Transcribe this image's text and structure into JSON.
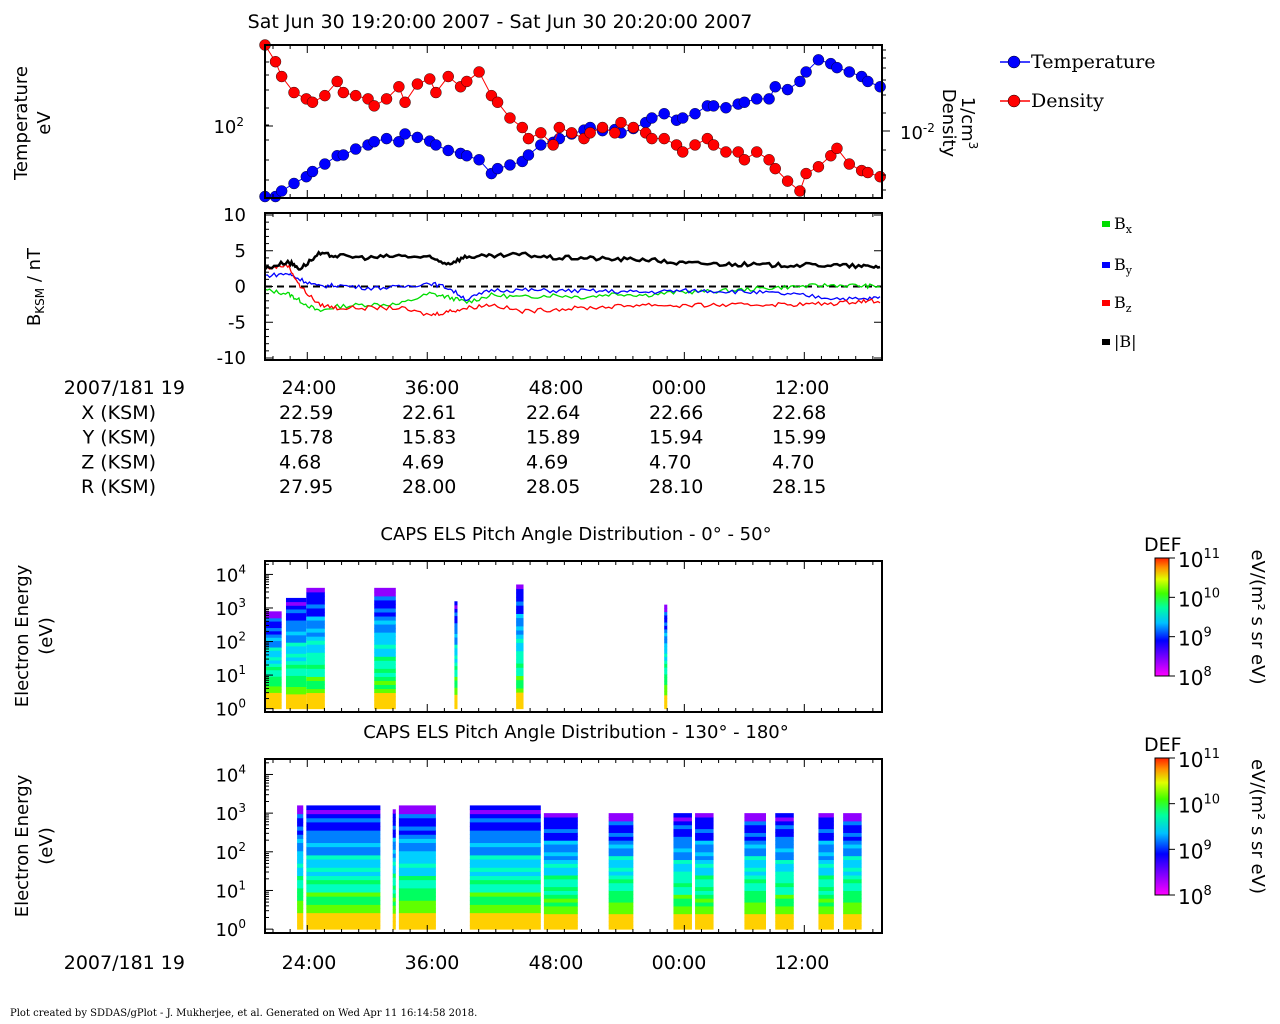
{
  "title": "Sat Jun 30 19:20:00 2007 - Sat Jun 30 20:20:00 2007",
  "footer": "Plot created by SDDAS/gPlot - J. Mukherjee, et al.  Generated on Wed Apr 11 16:14:58 2018.",
  "colors": {
    "temperature": "#0000ff",
    "density": "#ff0000",
    "bx": "#00dd00",
    "by": "#0000ff",
    "bz": "#ff0000",
    "bmag": "#000000"
  },
  "time_ticks": [
    "24:00",
    "36:00",
    "48:00",
    "00:00",
    "12:00"
  ],
  "ephemeris": {
    "header": "2007/181 19",
    "rows": [
      {
        "label": "X (KSM)",
        "values": [
          "22.59",
          "22.61",
          "22.64",
          "22.66",
          "22.68"
        ]
      },
      {
        "label": "Y (KSM)",
        "values": [
          "15.78",
          "15.83",
          "15.89",
          "15.94",
          "15.99"
        ]
      },
      {
        "label": "Z (KSM)",
        "values": [
          "4.68",
          "4.69",
          "4.69",
          "4.70",
          "4.70"
        ]
      },
      {
        "label": "R (KSM)",
        "values": [
          "27.95",
          "28.00",
          "28.05",
          "28.10",
          "28.15"
        ]
      }
    ],
    "bottom_header": "2007/181 19"
  },
  "chart_data": [
    {
      "type": "line",
      "name": "moments",
      "ylabel": "Temperature",
      "ylabel_unit": "eV",
      "ylabel2": "Density",
      "ylabel2_unit": "1/cm",
      "ylabel2_unit_sup": "3",
      "ytick_left": "10",
      "ytick_left_exp": "2",
      "ytick_right": "10",
      "ytick_right_exp": "-2",
      "yscale": "log",
      "ylim": [
        45,
        450
      ],
      "y2lim": [
        0.0045,
        0.045
      ],
      "xlim": [
        19.333,
        20.333
      ],
      "legend": [
        "Temperature",
        "Density"
      ],
      "legend_position": "top-right outside",
      "series": [
        {
          "name": "Temperature",
          "x": [
            19.333,
            19.35,
            19.36,
            19.38,
            19.4,
            19.41,
            19.43,
            19.45,
            19.46,
            19.48,
            19.5,
            19.51,
            19.53,
            19.55,
            19.56,
            19.58,
            19.6,
            19.61,
            19.63,
            19.65,
            19.66,
            19.68,
            19.7,
            19.71,
            19.73,
            19.75,
            19.76,
            19.78,
            19.8,
            19.81,
            19.83,
            19.85,
            19.86,
            19.88,
            19.9,
            19.91,
            19.93,
            19.95,
            19.96,
            19.98,
            20.0,
            20.01,
            20.03,
            20.05,
            20.06,
            20.08,
            20.1,
            20.11,
            20.13,
            20.15,
            20.16,
            20.18,
            20.2,
            20.21,
            20.23,
            20.25,
            20.26,
            20.28,
            20.3,
            20.31,
            20.33
          ],
          "values": [
            46,
            46,
            50,
            56,
            62,
            67,
            75,
            85,
            86,
            94,
            100,
            105,
            110,
            105,
            118,
            112,
            106,
            100,
            92,
            88,
            85,
            80,
            65,
            70,
            74,
            78,
            86,
            100,
            104,
            110,
            118,
            125,
            130,
            124,
            126,
            120,
            128,
            140,
            150,
            160,
            145,
            150,
            160,
            180,
            180,
            175,
            185,
            190,
            200,
            200,
            240,
            230,
            260,
            300,
            360,
            340,
            320,
            300,
            280,
            260,
            240
          ]
        },
        {
          "name": "Density",
          "x": [
            19.333,
            19.35,
            19.36,
            19.38,
            19.4,
            19.41,
            19.43,
            19.45,
            19.46,
            19.48,
            19.5,
            19.51,
            19.53,
            19.55,
            19.56,
            19.58,
            19.6,
            19.61,
            19.63,
            19.65,
            19.66,
            19.68,
            19.7,
            19.71,
            19.73,
            19.75,
            19.76,
            19.78,
            19.8,
            19.81,
            19.83,
            19.85,
            19.86,
            19.88,
            19.9,
            19.91,
            19.93,
            19.95,
            19.96,
            19.98,
            20.0,
            20.01,
            20.03,
            20.05,
            20.06,
            20.08,
            20.1,
            20.11,
            20.13,
            20.15,
            20.16,
            20.18,
            20.2,
            20.21,
            20.23,
            20.25,
            20.26,
            20.28,
            20.3,
            20.31,
            20.33
          ],
          "values": [
            0.045,
            0.035,
            0.028,
            0.022,
            0.02,
            0.019,
            0.021,
            0.026,
            0.022,
            0.021,
            0.02,
            0.018,
            0.02,
            0.024,
            0.019,
            0.025,
            0.027,
            0.022,
            0.028,
            0.024,
            0.026,
            0.03,
            0.021,
            0.019,
            0.015,
            0.013,
            0.011,
            0.012,
            0.01,
            0.013,
            0.012,
            0.011,
            0.012,
            0.013,
            0.012,
            0.014,
            0.013,
            0.012,
            0.011,
            0.011,
            0.01,
            0.009,
            0.01,
            0.011,
            0.01,
            0.009,
            0.009,
            0.008,
            0.009,
            0.008,
            0.007,
            0.0058,
            0.005,
            0.0065,
            0.0072,
            0.0085,
            0.0095,
            0.0075,
            0.0068,
            0.0066,
            0.0062
          ]
        }
      ]
    },
    {
      "type": "line",
      "name": "magnetometer",
      "ylabel": "B",
      "ylabel_sub": "KSM",
      "ylabel_rest": " / nT",
      "yticks": [
        "10",
        "5",
        "0",
        "-5",
        "-10"
      ],
      "ylim": [
        -10,
        10
      ],
      "xlim": [
        19.333,
        20.333
      ],
      "zero_line": true,
      "legend": [
        "B",
        "B",
        "B",
        "|B|"
      ],
      "legend_subs": [
        "x",
        "y",
        "z",
        ""
      ],
      "legend_position": "right outside",
      "series": [
        {
          "name": "Bx",
          "x": [
            19.333,
            19.37,
            19.39,
            19.42,
            19.45,
            19.5,
            19.55,
            19.6,
            19.63,
            19.66,
            19.7,
            19.75,
            19.8,
            19.85,
            19.9,
            19.95,
            20.0,
            20.05,
            20.1,
            20.15,
            20.2,
            20.25,
            20.3,
            20.333
          ],
          "values": [
            -0.5,
            -1,
            -2,
            -3.5,
            -2.8,
            -2.5,
            -2.5,
            -1,
            -1.5,
            -2.2,
            -1.2,
            -1.5,
            -1.2,
            -1.5,
            -1.0,
            -1.2,
            -0.8,
            -0.7,
            -0.5,
            -0.2,
            0,
            0.2,
            0.1,
            0
          ]
        },
        {
          "name": "By",
          "x": [
            19.333,
            19.37,
            19.39,
            19.42,
            19.45,
            19.5,
            19.55,
            19.6,
            19.63,
            19.66,
            19.7,
            19.75,
            19.8,
            19.85,
            19.9,
            19.95,
            20.0,
            20.05,
            20.1,
            20.15,
            20.2,
            20.25,
            20.3,
            20.333
          ],
          "values": [
            1.5,
            1.8,
            1,
            0,
            0.2,
            -0.2,
            -0.1,
            0.5,
            -0.2,
            -1.8,
            -0.5,
            -0.5,
            -0.6,
            -0.6,
            -0.7,
            -0.8,
            -0.6,
            -0.6,
            -0.7,
            -0.9,
            -1.2,
            -1.6,
            -1.8,
            -1.5
          ]
        },
        {
          "name": "Bz",
          "x": [
            19.333,
            19.37,
            19.39,
            19.42,
            19.45,
            19.5,
            19.55,
            19.6,
            19.63,
            19.66,
            19.7,
            19.75,
            19.8,
            19.85,
            19.9,
            19.95,
            20.0,
            20.05,
            20.1,
            20.15,
            20.2,
            20.25,
            20.3,
            20.333
          ],
          "values": [
            2.5,
            3,
            0,
            -2.5,
            -3,
            -3,
            -3,
            -4,
            -3.5,
            -3,
            -2.5,
            -3.5,
            -3.2,
            -3,
            -2.8,
            -2.5,
            -2.7,
            -2.6,
            -2.6,
            -2.5,
            -2.5,
            -2.4,
            -2.0,
            -2.0
          ]
        },
        {
          "name": "|B|",
          "x": [
            19.333,
            19.37,
            19.39,
            19.42,
            19.45,
            19.5,
            19.55,
            19.6,
            19.63,
            19.66,
            19.7,
            19.75,
            19.8,
            19.85,
            19.9,
            19.95,
            20.0,
            20.05,
            20.1,
            20.15,
            20.2,
            20.25,
            20.3,
            20.333
          ],
          "values": [
            2.5,
            3.5,
            2.5,
            4.5,
            4.3,
            4.0,
            4.3,
            4.0,
            3.2,
            4.2,
            4.2,
            4.5,
            4.0,
            4.0,
            3.8,
            3.8,
            3.3,
            3.2,
            3.1,
            3.0,
            3.0,
            3.0,
            2.8,
            2.8
          ]
        }
      ]
    },
    {
      "type": "heatmap",
      "name": "pad-0-50",
      "title": "CAPS ELS Pitch Angle Distribution - 0° - 50°",
      "ylabel": "Electron Energy",
      "ylabel_unit": "(eV)",
      "yscale": "log",
      "yticks": [
        [
          "10",
          "4"
        ],
        [
          "10",
          "3"
        ],
        [
          "10",
          "2"
        ],
        [
          "10",
          "1"
        ],
        [
          "10",
          "0"
        ]
      ],
      "colorbar": {
        "title": "DEF",
        "unit": "eV/(m² s sr eV)",
        "ticks": [
          [
            "10",
            "11"
          ],
          [
            "10",
            "10"
          ],
          [
            "10",
            "9"
          ],
          [
            "10",
            "8"
          ]
        ],
        "range": [
          100000000.0,
          100000000000.0
        ],
        "colormap": "rainbow"
      },
      "data_intervals": [
        [
          19.333,
          19.36,
          2.9
        ],
        [
          19.367,
          19.4,
          3.3
        ],
        [
          19.4,
          19.43,
          3.6
        ],
        [
          19.51,
          19.545,
          3.6
        ],
        [
          19.64,
          19.645,
          3.2
        ],
        [
          19.74,
          19.752,
          3.7
        ],
        [
          19.98,
          19.985,
          3.1
        ]
      ],
      "interval_note": "[t_start, t_end, max log10 energy]"
    },
    {
      "type": "heatmap",
      "name": "pad-130-180",
      "title": "CAPS ELS Pitch Angle Distribution - 130° - 180°",
      "ylabel": "Electron Energy",
      "ylabel_unit": "(eV)",
      "yscale": "log",
      "yticks": [
        [
          "10",
          "4"
        ],
        [
          "10",
          "3"
        ],
        [
          "10",
          "2"
        ],
        [
          "10",
          "1"
        ],
        [
          "10",
          "0"
        ]
      ],
      "colorbar": {
        "title": "DEF",
        "unit": "eV/(m² s sr eV)",
        "ticks": [
          [
            "10",
            "11"
          ],
          [
            "10",
            "10"
          ],
          [
            "10",
            "9"
          ],
          [
            "10",
            "8"
          ]
        ],
        "range": [
          100000000.0,
          100000000000.0
        ],
        "colormap": "rainbow"
      },
      "data_intervals": [
        [
          19.385,
          19.395,
          3.2
        ],
        [
          19.4,
          19.52,
          3.2
        ],
        [
          19.54,
          19.545,
          3.1
        ],
        [
          19.55,
          19.61,
          3.2
        ],
        [
          19.665,
          19.78,
          3.2
        ],
        [
          19.785,
          19.84,
          3.0
        ],
        [
          19.89,
          19.93,
          3.0
        ],
        [
          19.995,
          20.025,
          3.0
        ],
        [
          20.03,
          20.06,
          3.0
        ],
        [
          20.11,
          20.145,
          3.0
        ],
        [
          20.16,
          20.19,
          3.0
        ],
        [
          20.23,
          20.255,
          3.0
        ],
        [
          20.27,
          20.3,
          3.0
        ]
      ],
      "interval_note": "[t_start, t_end, max log10 energy]"
    }
  ]
}
